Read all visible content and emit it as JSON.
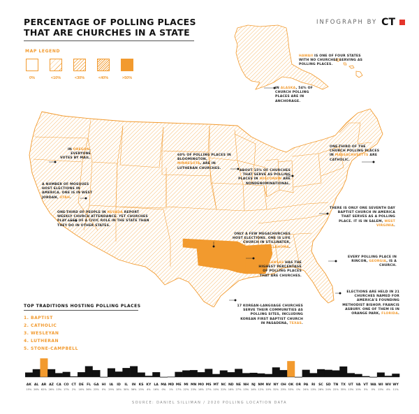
{
  "header": {
    "title_line1": "PERCENTAGE OF POLLING PLACES",
    "title_line2": "THAT ARE CHURCHES IN A STATE",
    "brand_text": "INFOGRAPH BY",
    "brand_mark": "CT"
  },
  "legend": {
    "title": "MAP LEGEND",
    "items": [
      {
        "label": "0%",
        "pattern": "none"
      },
      {
        "label": "<10%",
        "pattern": "sparse"
      },
      {
        "label": "<30%",
        "pattern": "medium"
      },
      {
        "label": "<40%",
        "pattern": "dense"
      },
      {
        "label": ">50%",
        "pattern": "solid"
      }
    ]
  },
  "annotations": {
    "hawaii": {
      "pre": "",
      "hl": "HAWAII",
      "post": " IS ONE OF FOUR STATES WITH NO CHURCHES SERVING AS POLLING PLACES."
    },
    "alaska": {
      "pre": "IN ",
      "hl": "ALASKA",
      "post": ", 54% OF CHURCH POLLING PLACES ARE IN ANCHORAGE."
    },
    "oregon": {
      "pre": "IN ",
      "hl": "OREGON",
      "post": ", EVERYONE VOTES BY MAIL."
    },
    "minnesota": {
      "pre": "60% OF POLLING PLACES IN BLOOMINGTON, ",
      "hl": "MINNESOTA",
      "post": ", ARE IN LUTHERAN CHURCHES."
    },
    "massachusetts": {
      "pre": "ONE-THIRD OF THE CHURCH POLLING PLACES IN ",
      "hl": "MASSACHUSETTS",
      "post": " ARE CATHOLIC."
    },
    "wisconsin": {
      "pre": "ABOUT 15% OF CHURCHES THAT SERVE AS POLLING PLACES IN ",
      "hl": "WISCONSIN",
      "post": " ARE NONDENOMINATIONAL."
    },
    "utah": {
      "pre": "A NUMBER OF MOSQUES HOST ELECTIONS IN AMERICA. ONE IS IN WEST JORDAN, ",
      "hl": "UTAH",
      "post": "."
    },
    "nevada": {
      "pre": "ONE-THIRD OF PEOPLE IN ",
      "hl": "NEVADA",
      "post": " REPORT WEEKLY CHURCH ATTENDANCE. YET CHURCHES PLAY LESS OF A CIVIC ROLE IN THE STATE THAN THEY DO IN OTHER STATES."
    },
    "westvirginia": {
      "pre": "THERE IS ONLY ONE SEVENTH DAY BAPTIST CHURCH IN AMERICA THAT SERVES AS A POLLING PLACE. IT IS IN SALEM, ",
      "hl": "WEST VIRGINIA",
      "post": "."
    },
    "oklahoma": {
      "pre": "ONLY A FEW MEGACHURCHES HOST ELECTIONS. ONE IS LIFE CHURCH IN STILLWATER, ",
      "hl": "OKLAHOMA",
      "post": "."
    },
    "arkansas": {
      "pre": "",
      "hl": "ARKANSAS",
      "post": " HAS THE HIGHEST PERCENTAGE OF POLLING PLACES THAT ARE CHURCHES."
    },
    "georgia": {
      "pre": "EVERY POLLING PLACE IN RINCON, ",
      "hl": "GEORGIA",
      "post": ", IS A CHURCH."
    },
    "florida": {
      "pre": "ELECTIONS ARE HELD IN 21 CHURCHES NAMED FOR AMERICA'S FOUNDING METHODIST BISHOP, FRANCIS ASBURY. ONE OF THEM IS IN ORANGE PARK, ",
      "hl": "FLORIDA",
      "post": "."
    },
    "texas": {
      "pre": "17 KOREAN-LANGUAGE CHURCHES SERVE THEIR COMMUNITIES AS POLLING SITES, INCLUDING KOREAN FIRST BAPTIST CHURCH IN PASADENA, ",
      "hl": "TEXAS",
      "post": "."
    }
  },
  "top_traditions": {
    "title": "TOP TRADITIONS HOSTING POLLING PLACES",
    "items": [
      "1.  BAPTIST",
      "2.  CATHOLIC",
      "3.  WESLEYAN",
      "4.  LUTHERAN",
      "5.  STONE-CAMPBELL"
    ]
  },
  "colors": {
    "accent": "#f29a2e",
    "text": "#111111",
    "brand_red": "#e4352b"
  },
  "chart_data": {
    "type": "bar",
    "title": "",
    "xlabel": "",
    "ylabel": "",
    "categories": [
      "AK",
      "AL",
      "AR",
      "AZ",
      "CA",
      "CO",
      "CT",
      "DE",
      "FL",
      "GA",
      "HI",
      "IA",
      "ID",
      "IL",
      "IN",
      "KS",
      "KY",
      "LA",
      "MA",
      "MD",
      "ME",
      "MI",
      "MN",
      "MO",
      "MS",
      "MT",
      "NC",
      "ND",
      "NE",
      "NH",
      "NJ",
      "NM",
      "NV",
      "NY",
      "OH",
      "OK",
      "OR",
      "PA",
      "RI",
      "SC",
      "SD",
      "TN",
      "TX",
      "UT",
      "VA",
      "VT",
      "WA",
      "WI",
      "WV",
      "WY"
    ],
    "values": [
      15,
      26,
      62,
      26,
      13,
      17,
      2,
      16,
      36,
      23,
      0,
      29,
      18,
      30,
      36,
      15,
      4,
      16,
      0,
      1,
      17,
      22,
      23,
      16,
      27,
      10,
      22,
      16,
      27,
      13,
      14,
      12,
      10,
      32,
      23,
      53,
      0,
      24,
      13,
      26,
      24,
      22,
      35,
      13,
      10,
      3,
      0,
      15,
      4,
      11
    ],
    "value_labels": [
      "15%",
      "26%",
      "62%",
      "26%",
      "13%",
      "17%",
      "2%",
      "16%",
      "36%",
      "23%",
      "0%",
      "29%",
      "18%",
      "30%",
      "36%",
      "15%",
      "4%",
      "16%",
      "0%",
      "1%",
      "17%",
      "22%",
      "23%",
      "16%",
      "27%",
      "10%",
      "22%",
      "16%",
      "27%",
      "13%",
      "14%",
      "12%",
      "10%",
      "32%",
      "23%",
      "53%",
      "0%",
      "24%",
      "13%",
      "26%",
      "24%",
      "22%",
      "35%",
      "13%",
      "10%",
      "3%",
      "0%",
      "15%",
      "4%",
      "11%"
    ],
    "highlight": [
      "AR",
      "OK"
    ],
    "highlight_color": "#f29a2e",
    "bar_color": "#111111",
    "ylim": [
      0,
      65
    ]
  },
  "source": "SOURCE: DANIEL SILLIMAN / 2020 POLLING LOCATION DATA"
}
